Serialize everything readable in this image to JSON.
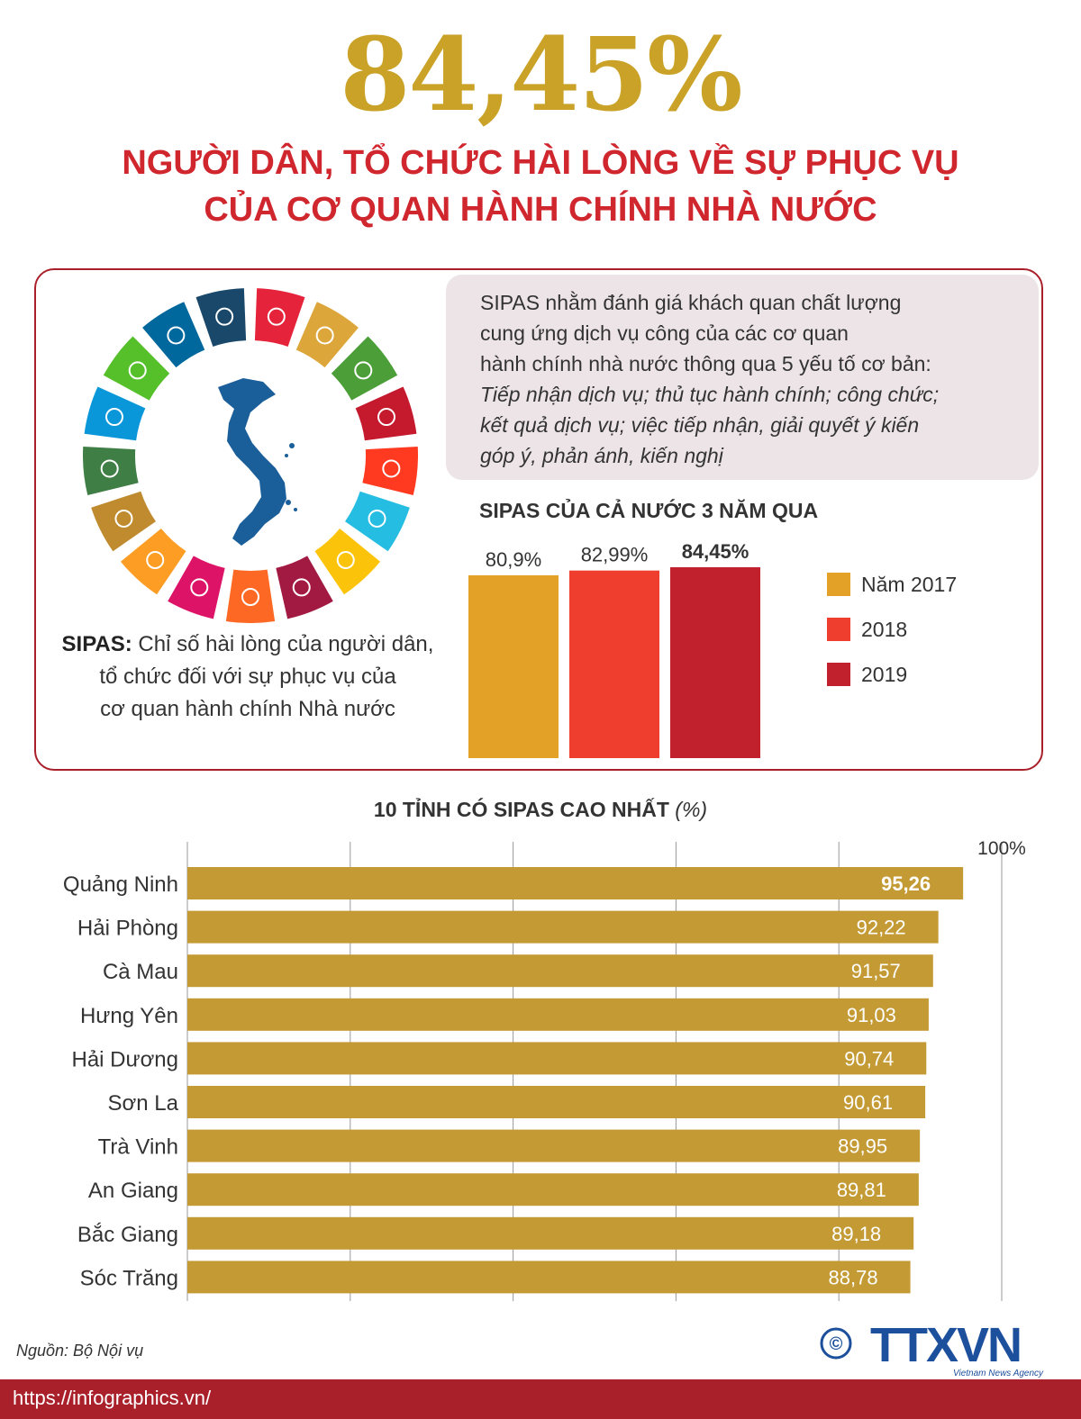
{
  "header": {
    "big_number": "84,45%",
    "headline_line1": "NGƯỜI DÂN, TỔ CHỨC HÀI LÒNG VỀ SỰ PHỤC VỤ",
    "headline_line2": "CỦA CƠ QUAN HÀNH CHÍNH NHÀ NƯỚC",
    "big_number_color": "#c9a227",
    "headline_color": "#d0262e"
  },
  "info": {
    "line1": "SIPAS nhằm đánh giá khách quan chất lượng",
    "line2": "cung ứng dịch vụ công của các cơ quan",
    "line3": "hành chính nhà nước thông qua 5 yếu tố cơ bản:",
    "line4": "Tiếp nhận dịch vụ; thủ tục hành chính; công chức;",
    "line5": "kết quả dịch vụ; việc tiếp nhận, giải quyết ý kiến",
    "line6": "góp ý, phản ánh, kiến nghị"
  },
  "definition": {
    "term": "SIPAS:",
    "line1": " Chỉ số hài lòng của người dân,",
    "line2": "tổ chức đối với sự phục vụ của",
    "line3": "cơ quan hành chính Nhà nước"
  },
  "sdg_wheel": {
    "icon": "sdg-wheel-with-vietnam-map-icon",
    "colors": [
      "#e5243b",
      "#dda63a",
      "#4c9f38",
      "#c5192d",
      "#ff3a21",
      "#26bde2",
      "#fcc30b",
      "#a21942",
      "#fd6925",
      "#dd1367",
      "#fd9d24",
      "#bf8b2e",
      "#3f7e44",
      "#0a97d9",
      "#56c02b",
      "#00689d",
      "#19486a"
    ],
    "map_color": "#1a5e9a"
  },
  "chart_data": [
    {
      "type": "bar",
      "title": "SIPAS CỦA CẢ NƯỚC 3 NĂM QUA",
      "categories": [
        "Năm 2017",
        "2018",
        "2019"
      ],
      "values": [
        80.9,
        82.99,
        84.45
      ],
      "data_labels": [
        "80,9%",
        "82,99%",
        "84,45%"
      ],
      "colors": [
        "#e3a227",
        "#ef3e2e",
        "#c1202d"
      ],
      "legend": "right",
      "grid": false
    },
    {
      "type": "bar",
      "orientation": "horizontal",
      "title": "10 TỈNH CÓ SIPAS CAO NHẤT",
      "title_unit": "(%)",
      "categories": [
        "Quảng Ninh",
        "Hải Phòng",
        "Cà Mau",
        "Hưng Yên",
        "Hải Dương",
        "Sơn La",
        "Trà Vinh",
        "An Giang",
        "Bắc Giang",
        "Sóc Trăng"
      ],
      "values": [
        95.26,
        92.22,
        91.57,
        91.03,
        90.74,
        90.61,
        89.95,
        89.81,
        89.18,
        88.78
      ],
      "data_labels": [
        "95,26",
        "92,22",
        "91,57",
        "91,03",
        "90,74",
        "90,61",
        "89,95",
        "89,81",
        "89,18",
        "88,78"
      ],
      "xlim": [
        0,
        100
      ],
      "max_label": "100%",
      "grid": true,
      "bar_color": "#c49a34"
    }
  ],
  "footer": {
    "source": "Nguồn: Bộ Nội vụ",
    "url": "https://infographics.vn/",
    "logo_text": "TTXVN",
    "logo_copyright": "©",
    "logo_tagline": "Vietnam News Agency",
    "logo_color": "#1c4f9c",
    "url_bar_color": "#a9202b"
  }
}
